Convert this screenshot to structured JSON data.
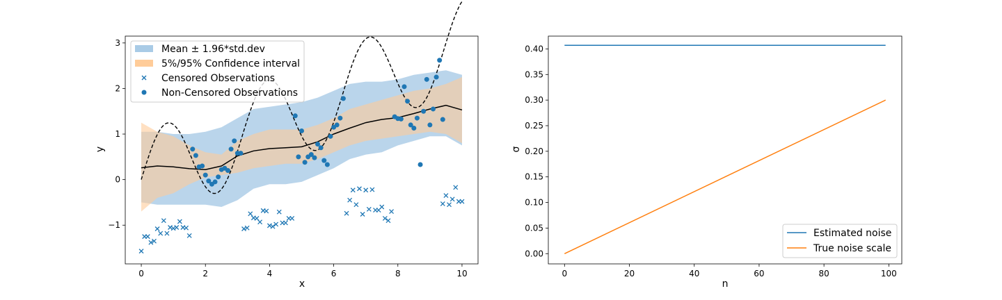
{
  "chart_data": [
    {
      "type": "line",
      "xlabel": "x",
      "ylabel": "y",
      "xlim": [
        -0.5,
        10.5
      ],
      "ylim": [
        -1.85,
        3.15
      ],
      "xticks": [
        0,
        2,
        4,
        6,
        8,
        10
      ],
      "xtick_labels": [
        "0",
        "2",
        "4",
        "6",
        "8",
        "10"
      ],
      "yticks": [
        -1,
        0,
        1,
        2,
        3
      ],
      "ytick_labels": [
        "−1",
        "0",
        "1",
        "2",
        "3"
      ],
      "grid": false,
      "legend_position": "top-left",
      "legend": [
        "Mean ± 1.96*std.dev",
        "5%/95% Confidence interval",
        "Censored Observations",
        "Non-Censored Observations"
      ],
      "colors": {
        "blue": "#1f77b4",
        "band_blue": "#a9cbe6",
        "band_orange": "#ffcc99",
        "mean": "#000000"
      },
      "mean_band": {
        "x": [
          0,
          0.5,
          1,
          1.5,
          2,
          2.5,
          3,
          3.5,
          4,
          4.5,
          5,
          5.5,
          6,
          6.5,
          7,
          7.5,
          8,
          8.5,
          9,
          9.5,
          10
        ],
        "lower": [
          -0.5,
          -0.55,
          -0.55,
          -0.55,
          -0.55,
          -0.6,
          -0.45,
          -0.2,
          -0.1,
          -0.1,
          -0.05,
          0.1,
          0.25,
          0.45,
          0.55,
          0.6,
          0.75,
          0.85,
          0.95,
          0.95,
          0.75
        ],
        "upper": [
          1.05,
          1.05,
          1.0,
          1.0,
          1.05,
          1.15,
          1.35,
          1.55,
          1.6,
          1.65,
          1.7,
          1.8,
          1.95,
          2.1,
          2.15,
          2.15,
          2.2,
          2.3,
          2.35,
          2.4,
          2.3
        ]
      },
      "ci_band": {
        "x": [
          0,
          0.5,
          1,
          1.5,
          2,
          2.5,
          3,
          3.5,
          4,
          4.5,
          5,
          5.5,
          6,
          6.5,
          7,
          7.5,
          8,
          8.5,
          9,
          9.5,
          10
        ],
        "lower": [
          -0.7,
          -0.4,
          -0.3,
          -0.1,
          0.05,
          0.1,
          0.15,
          0.25,
          0.3,
          0.35,
          0.35,
          0.45,
          0.6,
          0.75,
          0.85,
          0.9,
          0.95,
          1.0,
          1.05,
          1.0,
          0.8
        ],
        "upper": [
          1.25,
          1.05,
          0.95,
          0.75,
          0.6,
          0.55,
          0.85,
          1.0,
          1.1,
          1.1,
          1.1,
          1.2,
          1.35,
          1.55,
          1.65,
          1.75,
          1.85,
          1.95,
          2.0,
          2.1,
          2.25
        ]
      },
      "mean_line": {
        "x": [
          0,
          0.5,
          1,
          1.5,
          2,
          2.5,
          3,
          3.5,
          4,
          4.5,
          5,
          5.5,
          6,
          6.5,
          7,
          7.5,
          8,
          8.5,
          9,
          9.5,
          10
        ],
        "y": [
          0.26,
          0.3,
          0.28,
          0.24,
          0.22,
          0.3,
          0.52,
          0.63,
          0.68,
          0.7,
          0.72,
          0.83,
          1.0,
          1.13,
          1.25,
          1.32,
          1.36,
          1.45,
          1.55,
          1.63,
          1.53
        ]
      },
      "true_function": {
        "type": "dashed",
        "formula": "0.3x + sin(2x)",
        "x_range": [
          0,
          10
        ]
      },
      "censored_observations": {
        "x": [
          0,
          0.1,
          0.2,
          0.3,
          0.4,
          0.5,
          0.6,
          0.7,
          0.8,
          0.9,
          1.0,
          1.1,
          1.2,
          1.3,
          1.4,
          1.5,
          3.2,
          3.3,
          3.4,
          3.5,
          3.6,
          3.7,
          3.8,
          3.9,
          4.0,
          4.1,
          4.2,
          4.3,
          4.4,
          4.5,
          4.6,
          4.7,
          6.4,
          6.5,
          6.6,
          6.7,
          6.8,
          6.9,
          7.0,
          7.1,
          7.2,
          7.3,
          7.4,
          7.5,
          7.6,
          7.7,
          7.8,
          9.4,
          9.5,
          9.6,
          9.7,
          9.8,
          9.9,
          10.0
        ],
        "y": [
          -1.57,
          -1.25,
          -1.25,
          -1.38,
          -1.35,
          -1.08,
          -1.18,
          -0.9,
          -1.18,
          -1.05,
          -1.07,
          -1.05,
          -0.92,
          -1.05,
          -1.06,
          -1.23,
          -1.08,
          -1.06,
          -0.75,
          -0.84,
          -0.85,
          -0.93,
          -0.68,
          -0.69,
          -1.01,
          -1.03,
          -0.98,
          -0.71,
          -0.95,
          -0.95,
          -0.85,
          -0.85,
          -0.74,
          -0.45,
          -0.23,
          -0.55,
          -0.2,
          -0.76,
          -0.23,
          -0.65,
          -0.22,
          -0.67,
          -0.67,
          -0.6,
          -0.85,
          -0.9,
          -0.7,
          -0.53,
          -0.35,
          -0.55,
          -0.43,
          -0.17,
          -0.48,
          -0.48
        ]
      },
      "non_censored_observations": {
        "x": [
          1.6,
          1.7,
          1.8,
          1.9,
          2.0,
          2.1,
          2.2,
          2.3,
          2.4,
          2.5,
          2.6,
          2.7,
          2.8,
          2.9,
          3.0,
          3.1,
          4.8,
          4.9,
          5.0,
          5.1,
          5.2,
          5.3,
          5.4,
          5.5,
          5.6,
          5.7,
          5.8,
          5.9,
          6.0,
          6.1,
          6.2,
          6.3,
          7.9,
          8.0,
          8.1,
          8.2,
          8.3,
          8.4,
          8.5,
          8.6,
          8.7,
          8.8,
          8.9,
          9.0,
          9.1,
          9.2,
          9.3,
          9.4
        ],
        "y": [
          0.67,
          0.53,
          0.28,
          0.3,
          0.1,
          -0.03,
          -0.1,
          -0.05,
          0.06,
          0.22,
          0.25,
          0.2,
          0.67,
          0.85,
          0.58,
          0.58,
          1.4,
          0.5,
          1.07,
          0.38,
          0.5,
          0.55,
          0.48,
          0.78,
          0.7,
          0.42,
          0.33,
          0.95,
          1.15,
          1.2,
          1.35,
          1.78,
          1.38,
          1.34,
          1.33,
          2.04,
          1.72,
          1.2,
          1.13,
          1.35,
          0.33,
          1.5,
          2.2,
          1.2,
          1.55,
          2.25,
          2.62,
          1.32
        ]
      }
    },
    {
      "type": "line",
      "xlabel": "n",
      "ylabel": "σ",
      "xlim": [
        -5,
        104
      ],
      "ylim": [
        -0.02,
        0.425
      ],
      "xticks": [
        0,
        20,
        40,
        60,
        80,
        100
      ],
      "xtick_labels": [
        "0",
        "20",
        "40",
        "60",
        "80",
        "100"
      ],
      "yticks": [
        0,
        0.05,
        0.1,
        0.15,
        0.2,
        0.25,
        0.3,
        0.35,
        0.4
      ],
      "ytick_labels": [
        "0.00",
        "0.05",
        "0.10",
        "0.15",
        "0.20",
        "0.25",
        "0.30",
        "0.35",
        "0.40"
      ],
      "grid": false,
      "legend_position": "bottom-right",
      "series": [
        {
          "name": "Estimated noise",
          "color": "#1f77b4",
          "x": [
            0,
            99
          ],
          "y": [
            0.407,
            0.407
          ]
        },
        {
          "name": "True noise scale",
          "color": "#ff7f0e",
          "x": [
            0,
            99
          ],
          "y": [
            0.0,
            0.3
          ]
        }
      ]
    }
  ]
}
